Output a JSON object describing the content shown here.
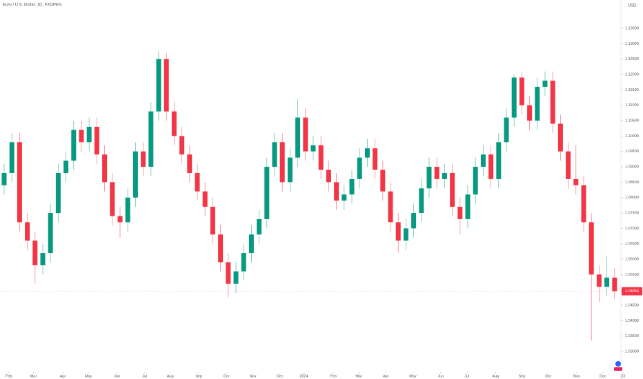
{
  "chart_data": {
    "type": "candlestick",
    "title": "Euro / U.S. Dollar, 1D, FXOPEN",
    "currency": "USD",
    "up_color": "#089981",
    "down_color": "#f23645",
    "open": [
      1.084,
      1.088,
      1.098,
      1.072,
      1.066,
      1.058,
      1.062,
      1.075,
      1.088,
      1.092,
      1.102,
      1.098,
      1.103,
      1.094,
      1.085,
      1.074,
      1.072,
      1.08,
      1.095,
      1.09,
      1.108,
      1.125,
      1.108,
      1.1,
      1.094,
      1.088,
      1.082,
      1.077,
      1.068,
      1.059,
      1.052,
      1.056,
      1.062,
      1.068,
      1.073,
      1.09,
      1.098,
      1.085,
      1.093,
      1.106,
      1.095,
      1.097,
      1.089,
      1.085,
      1.079,
      1.081,
      1.086,
      1.093,
      1.096,
      1.089,
      1.082,
      1.072,
      1.066,
      1.07,
      1.075,
      1.083,
      1.09,
      1.086,
      1.088,
      1.077,
      1.073,
      1.081,
      1.09,
      1.094,
      1.086,
      1.098,
      1.106,
      1.119,
      1.11,
      1.105,
      1.116,
      1.118,
      1.104,
      1.095,
      1.086,
      1.084,
      1.072,
      1.055,
      1.051,
      1.054
    ],
    "high": [
      1.091,
      1.101,
      1.101,
      1.075,
      1.069,
      1.065,
      1.078,
      1.091,
      1.095,
      1.105,
      1.105,
      1.106,
      1.106,
      1.097,
      1.088,
      1.077,
      1.083,
      1.098,
      1.098,
      1.111,
      1.1275,
      1.127,
      1.111,
      1.103,
      1.097,
      1.091,
      1.085,
      1.08,
      1.071,
      1.062,
      1.059,
      1.065,
      1.071,
      1.076,
      1.093,
      1.101,
      1.101,
      1.096,
      1.112,
      1.109,
      1.1,
      1.1,
      1.092,
      1.088,
      1.084,
      1.089,
      1.096,
      1.099,
      1.099,
      1.092,
      1.085,
      1.075,
      1.073,
      1.078,
      1.086,
      1.093,
      1.093,
      1.091,
      1.091,
      1.08,
      1.084,
      1.093,
      1.097,
      1.097,
      1.101,
      1.109,
      1.12,
      1.121,
      1.113,
      1.119,
      1.121,
      1.121,
      1.107,
      1.098,
      1.097,
      1.087,
      1.075,
      1.058,
      1.061,
      1.057
    ],
    "low": [
      1.081,
      1.085,
      1.069,
      1.063,
      1.052,
      1.055,
      1.059,
      1.072,
      1.085,
      1.089,
      1.095,
      1.095,
      1.091,
      1.082,
      1.071,
      1.067,
      1.069,
      1.077,
      1.087,
      1.087,
      1.105,
      1.105,
      1.097,
      1.091,
      1.085,
      1.079,
      1.074,
      1.065,
      1.056,
      1.0475,
      1.049,
      1.053,
      1.059,
      1.065,
      1.07,
      1.087,
      1.082,
      1.082,
      1.09,
      1.092,
      1.092,
      1.086,
      1.082,
      1.076,
      1.076,
      1.078,
      1.083,
      1.09,
      1.086,
      1.079,
      1.069,
      1.062,
      1.063,
      1.067,
      1.072,
      1.08,
      1.083,
      1.083,
      1.074,
      1.068,
      1.07,
      1.078,
      1.087,
      1.083,
      1.083,
      1.095,
      1.103,
      1.107,
      1.102,
      1.102,
      1.113,
      1.101,
      1.092,
      1.083,
      1.081,
      1.069,
      1.0335,
      1.046,
      1.048,
      1.047
    ],
    "close": [
      1.088,
      1.098,
      1.072,
      1.066,
      1.058,
      1.062,
      1.075,
      1.088,
      1.092,
      1.102,
      1.098,
      1.103,
      1.094,
      1.085,
      1.074,
      1.072,
      1.08,
      1.095,
      1.09,
      1.108,
      1.125,
      1.108,
      1.1,
      1.094,
      1.088,
      1.082,
      1.077,
      1.068,
      1.059,
      1.052,
      1.056,
      1.062,
      1.068,
      1.073,
      1.09,
      1.098,
      1.085,
      1.093,
      1.106,
      1.095,
      1.097,
      1.089,
      1.085,
      1.079,
      1.081,
      1.086,
      1.093,
      1.096,
      1.089,
      1.082,
      1.072,
      1.066,
      1.07,
      1.075,
      1.083,
      1.09,
      1.086,
      1.088,
      1.077,
      1.073,
      1.081,
      1.09,
      1.094,
      1.086,
      1.098,
      1.106,
      1.119,
      1.11,
      1.105,
      1.116,
      1.118,
      1.104,
      1.095,
      1.086,
      1.084,
      1.072,
      1.055,
      1.051,
      1.054,
      1.04956
    ],
    "ylim": [
      1.0244,
      1.1442
    ],
    "yticks": [
      {
        "value": 1.03,
        "label": "1.03000"
      },
      {
        "value": 1.035,
        "label": "1.03500"
      },
      {
        "value": 1.04,
        "label": "1.04000"
      },
      {
        "value": 1.045,
        "label": "1.04500"
      },
      {
        "value": 1.05,
        "label": "1.05000"
      },
      {
        "value": 1.055,
        "label": "1.05500"
      },
      {
        "value": 1.06,
        "label": "1.06000"
      },
      {
        "value": 1.065,
        "label": "1.06500"
      },
      {
        "value": 1.07,
        "label": "1.07000"
      },
      {
        "value": 1.075,
        "label": "1.07500"
      },
      {
        "value": 1.08,
        "label": "1.08000"
      },
      {
        "value": 1.085,
        "label": "1.08500"
      },
      {
        "value": 1.09,
        "label": "1.09000"
      },
      {
        "value": 1.095,
        "label": "1.09500"
      },
      {
        "value": 1.1,
        "label": "1.10000"
      },
      {
        "value": 1.105,
        "label": "1.10500"
      },
      {
        "value": 1.11,
        "label": "1.11000"
      },
      {
        "value": 1.115,
        "label": "1.11500"
      },
      {
        "value": 1.12,
        "label": "1.12000"
      },
      {
        "value": 1.125,
        "label": "1.12500"
      },
      {
        "value": 1.13,
        "label": "1.13000"
      },
      {
        "value": 1.135,
        "label": "1.13500"
      }
    ],
    "xticks": [
      {
        "value": 0.6,
        "label": "Feb"
      },
      {
        "value": 3.8,
        "label": "Mar"
      },
      {
        "value": 7.6,
        "label": "Apr"
      },
      {
        "value": 10.9,
        "label": "May"
      },
      {
        "value": 14.6,
        "label": "Jun"
      },
      {
        "value": 18.2,
        "label": "Jul"
      },
      {
        "value": 21.5,
        "label": "Aug"
      },
      {
        "value": 25.2,
        "label": "Sep"
      },
      {
        "value": 28.75,
        "label": "Oct"
      },
      {
        "value": 32.2,
        "label": "Nov"
      },
      {
        "value": 35.7,
        "label": "Dec"
      },
      {
        "value": 38.8,
        "label": "2024"
      },
      {
        "value": 42.6,
        "label": "Feb"
      },
      {
        "value": 45.9,
        "label": "Mar"
      },
      {
        "value": 49.4,
        "label": "Apr"
      },
      {
        "value": 52.9,
        "label": "May"
      },
      {
        "value": 56.5,
        "label": "Jun"
      },
      {
        "value": 59.9,
        "label": "Jul"
      },
      {
        "value": 63.6,
        "label": "Aug"
      },
      {
        "value": 67,
        "label": "Sep"
      },
      {
        "value": 70.4,
        "label": "Oct"
      },
      {
        "value": 74.1,
        "label": "Nov"
      },
      {
        "value": 77.5,
        "label": "Dec"
      },
      {
        "value": 80.1,
        "label": "23"
      }
    ]
  }
}
